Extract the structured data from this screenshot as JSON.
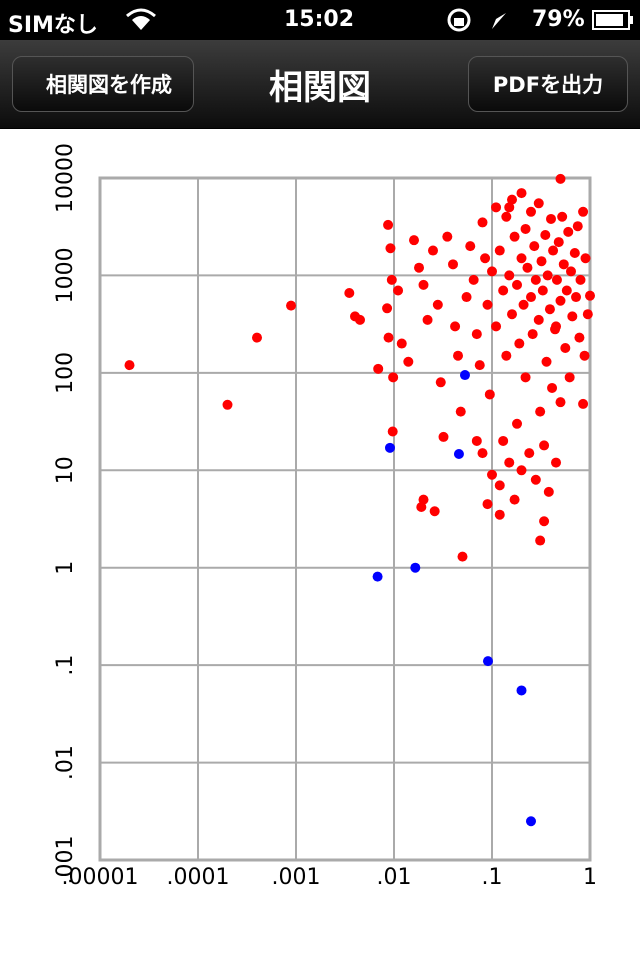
{
  "status_bar": {
    "carrier": "SIMなし",
    "time": "15:02",
    "battery": "79%"
  },
  "nav_bar": {
    "back_button": "相関図を作成",
    "title": "相関図",
    "action_button": "PDFを出力"
  },
  "chart_data": {
    "type": "scatter",
    "xscale": "log",
    "yscale": "log",
    "grid": true,
    "xlim": [
      1e-05,
      1
    ],
    "ylim": [
      0.001,
      10000
    ],
    "xticks": [
      {
        "value": 1e-05,
        "label": ".00001"
      },
      {
        "value": 0.0001,
        "label": ".0001"
      },
      {
        "value": 0.001,
        "label": ".001"
      },
      {
        "value": 0.01,
        "label": ".01"
      },
      {
        "value": 0.1,
        "label": ".1"
      },
      1
    ],
    "yticks": [
      {
        "value": 0.001,
        "label": ".001"
      },
      {
        "value": 0.01,
        "label": ".01"
      },
      {
        "value": 0.1,
        "label": ".1"
      },
      1,
      10,
      100,
      1000,
      10000
    ],
    "series": [
      {
        "color": "#ff0000",
        "x": [
          2e-05,
          0.0002,
          0.0004,
          0.00089,
          0.0035,
          0.004,
          0.0045,
          0.0069,
          0.0087,
          0.0097,
          0.05,
          0.02,
          0.026,
          0.019,
          0.31,
          0.34,
          0.5,
          1.0,
          0.0092,
          0.0085,
          0.0095,
          0.011,
          0.012,
          0.0098,
          0.0088,
          0.014,
          0.016,
          0.018,
          0.02,
          0.022,
          0.025,
          0.028,
          0.03,
          0.032,
          0.035,
          0.04,
          0.042,
          0.045,
          0.048,
          0.055,
          0.06,
          0.065,
          0.07,
          0.075,
          0.08,
          0.085,
          0.09,
          0.095,
          0.1,
          0.1,
          0.11,
          0.11,
          0.12,
          0.12,
          0.13,
          0.13,
          0.14,
          0.14,
          0.15,
          0.15,
          0.16,
          0.16,
          0.17,
          0.17,
          0.18,
          0.18,
          0.19,
          0.2,
          0.2,
          0.2,
          0.21,
          0.22,
          0.22,
          0.23,
          0.24,
          0.25,
          0.25,
          0.26,
          0.27,
          0.28,
          0.28,
          0.3,
          0.3,
          0.31,
          0.32,
          0.33,
          0.34,
          0.35,
          0.36,
          0.37,
          0.38,
          0.39,
          0.4,
          0.41,
          0.42,
          0.44,
          0.45,
          0.46,
          0.48,
          0.5,
          0.52,
          0.54,
          0.56,
          0.58,
          0.6,
          0.62,
          0.64,
          0.66,
          0.7,
          0.72,
          0.75,
          0.78,
          0.8,
          0.85,
          0.88,
          0.9,
          0.95,
          0.08,
          0.09,
          0.12,
          0.07,
          0.15,
          0.5,
          0.85,
          0.45
        ],
        "values": [
          120,
          47,
          230,
          490,
          660,
          380,
          350,
          110,
          3300,
          25,
          1.3,
          5,
          3.8,
          4.2,
          1.9,
          3.0,
          9800,
          620,
          1900,
          460,
          900,
          700,
          200,
          90,
          230,
          130,
          2300,
          1200,
          800,
          350,
          1800,
          500,
          80,
          22,
          2500,
          1300,
          300,
          150,
          40,
          600,
          2000,
          900,
          250,
          120,
          3500,
          1500,
          500,
          60,
          9,
          1100,
          5000,
          300,
          7,
          1800,
          700,
          20,
          4000,
          150,
          12,
          1000,
          6000,
          400,
          5,
          2500,
          800,
          30,
          200,
          7000,
          1500,
          10,
          500,
          3000,
          90,
          1200,
          15,
          4500,
          600,
          250,
          2000,
          8,
          900,
          5500,
          350,
          40,
          1400,
          700,
          18,
          2600,
          130,
          1000,
          6,
          450,
          3800,
          70,
          1800,
          280,
          12,
          900,
          2200,
          550,
          4000,
          1300,
          180,
          700,
          2800,
          90,
          1100,
          380,
          1700,
          600,
          3200,
          230,
          900,
          4500,
          150,
          1500,
          400,
          15,
          4.5,
          3.5,
          20,
          5000,
          50,
          48,
          300
        ]
      },
      {
        "color": "#0000ff",
        "x": [
          0.0068,
          0.0091,
          0.0165,
          0.046,
          0.053,
          0.091,
          0.2,
          0.25
        ],
        "values": [
          0.81,
          17,
          1.0,
          14.7,
          95,
          0.11,
          0.055,
          0.0025
        ]
      }
    ]
  }
}
